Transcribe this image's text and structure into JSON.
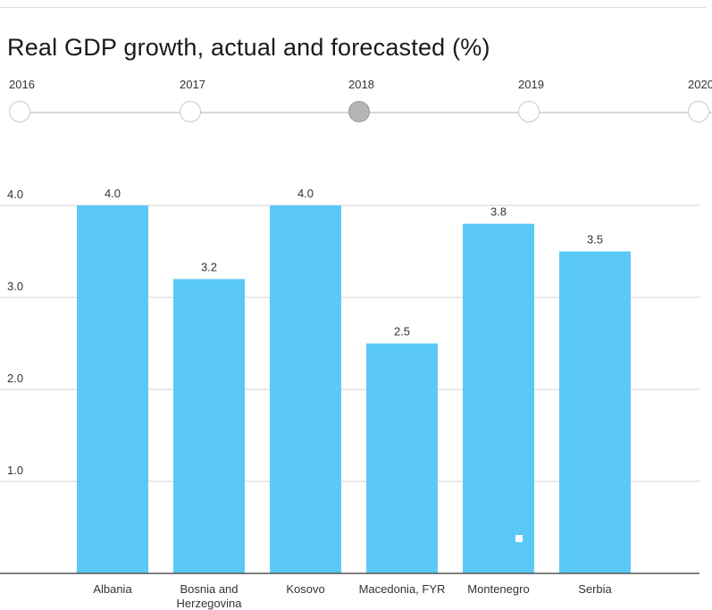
{
  "title": "Real GDP growth, actual and forecasted (%)",
  "timeline": {
    "years": [
      "2016",
      "2017",
      "2018",
      "2019",
      "2020"
    ],
    "selected_index": 2
  },
  "colors": {
    "bar": "#5bc9f8",
    "grid": "#e0e0e0",
    "axis": "#555555",
    "selected_node": "#b5b5b5"
  },
  "chart_data": {
    "type": "bar",
    "categories": [
      "Albania",
      "Bosnia and Herzegovina",
      "Kosovo",
      "Macedonia, FYR",
      "Montenegro",
      "Serbia"
    ],
    "category_lines": [
      [
        "Albania"
      ],
      [
        "Bosnia and",
        "Herzegovina"
      ],
      [
        "Kosovo"
      ],
      [
        "Macedonia, FYR"
      ],
      [
        "Montenegro"
      ],
      [
        "Serbia"
      ]
    ],
    "values": [
      4.0,
      3.2,
      4.0,
      2.5,
      3.8,
      3.5
    ],
    "data_labels": [
      "4.0",
      "3.2",
      "4.0",
      "2.5",
      "3.8",
      "3.5"
    ],
    "yticks": [
      1.0,
      2.0,
      3.0,
      4.0
    ],
    "ytick_labels": [
      "1.0",
      "2.0",
      "3.0",
      "4.0"
    ],
    "ylim": [
      0,
      4.0
    ],
    "grid": true,
    "legend": "none"
  }
}
